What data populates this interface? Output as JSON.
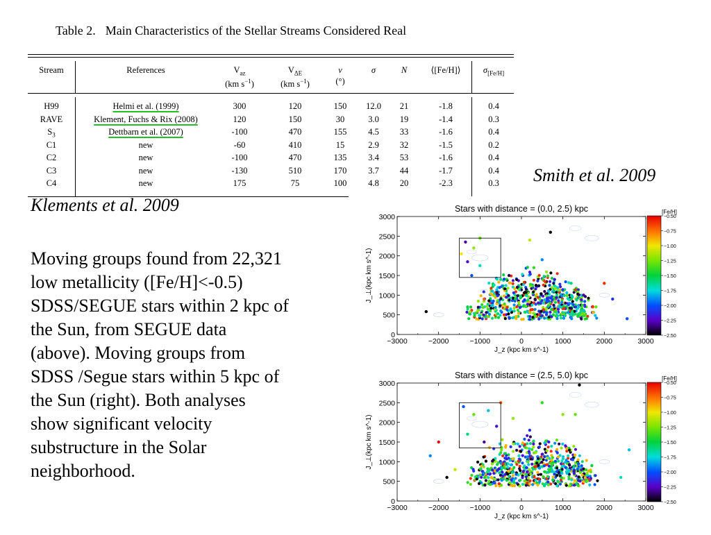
{
  "table": {
    "label": "Table 2.",
    "caption": "Main Characteristics of the Stellar Streams Considered Real",
    "headers": [
      {
        "line1": "Stream",
        "line2": ""
      },
      {
        "line1": "References",
        "line2": ""
      },
      {
        "line1": "V_az",
        "line2": "(km s^−1)"
      },
      {
        "line1": "V_ΔE",
        "line2": "(km s^−1)"
      },
      {
        "line1": "ν",
        "line2": "(°)"
      },
      {
        "line1": "σ",
        "line2": ""
      },
      {
        "line1": "N",
        "line2": ""
      },
      {
        "line1": "⟨[Fe/H]⟩",
        "line2": ""
      },
      {
        "line1": "σ_[Fe/H]",
        "line2": ""
      }
    ],
    "rows": [
      {
        "stream": "H99",
        "ref": "Helmi et al. (1999)",
        "vaz": "300",
        "vde": "120",
        "nu": "150",
        "sigma": "12.0",
        "n": "21",
        "feh": "-1.8",
        "sfeh": "0.4"
      },
      {
        "stream": "RAVE",
        "ref": "Klement, Fuchs & Rix (2008)",
        "vaz": "120",
        "vde": "150",
        "nu": "30",
        "sigma": "3.0",
        "n": "19",
        "feh": "-1.4",
        "sfeh": "0.3"
      },
      {
        "stream": "S3",
        "ref": "Dettbarn et al. (2007)",
        "vaz": "-100",
        "vde": "470",
        "nu": "155",
        "sigma": "4.5",
        "n": "33",
        "feh": "-1.6",
        "sfeh": "0.4"
      },
      {
        "stream": "C1",
        "ref": "new",
        "vaz": "-60",
        "vde": "410",
        "nu": "15",
        "sigma": "2.9",
        "n": "32",
        "feh": "-1.5",
        "sfeh": "0.2"
      },
      {
        "stream": "C2",
        "ref": "new",
        "vaz": "-100",
        "vde": "470",
        "nu": "135",
        "sigma": "3.4",
        "n": "53",
        "feh": "-1.6",
        "sfeh": "0.4"
      },
      {
        "stream": "C3",
        "ref": "new",
        "vaz": "-130",
        "vde": "510",
        "nu": "170",
        "sigma": "3.7",
        "n": "44",
        "feh": "-1.7",
        "sfeh": "0.4"
      },
      {
        "stream": "C4",
        "ref": "new",
        "vaz": "175",
        "vde": "75",
        "nu": "100",
        "sigma": "4.8",
        "n": "20",
        "feh": "-2.3",
        "sfeh": "0.3"
      }
    ]
  },
  "credit_smith": "Smith et al. 2009",
  "credit_klements": "Klements et al. 2009",
  "body_lines": [
    "Moving groups found from 22,321",
    "low metallicity ([Fe/H]<-0.5)",
    "SDSS/SEGUE stars within 2 kpc of",
    "the Sun, from SEGUE data",
    "(above).  Moving groups from",
    "SDSS /Segue stars within 5 kpc of",
    "the Sun (right).  Both analyses",
    "show significant velocity",
    "substructure in the Solar",
    "neighborhood."
  ],
  "chart_data": [
    {
      "type": "scatter",
      "title": "Stars with distance = (0.0, 2.5) kpc",
      "xlabel": "J_z (kpc km s^-1)",
      "ylabel": "J_⊥(kpc km s^-1)",
      "xlim": [
        -3000,
        3000
      ],
      "ylim": [
        0,
        3000
      ],
      "xticks": [
        "−3000",
        "−2000",
        "−1000",
        "0",
        "1000",
        "2000",
        "3000"
      ],
      "yticks": [
        "0",
        "500",
        "1000",
        "1500",
        "2000",
        "2500",
        "3000"
      ],
      "colorbar": {
        "label": "[Fe/H]",
        "ticks": [
          "−0.50",
          "−0.75",
          "−1.00",
          "−1.25",
          "−1.50",
          "−1.75",
          "−2.00",
          "−2.25",
          "−2.50"
        ],
        "range": [
          -2.5,
          -0.5
        ]
      },
      "box": {
        "x": [
          -1500,
          -500
        ],
        "y": [
          1450,
          2450
        ]
      },
      "points": [
        [
          -2300,
          580,
          -2.5
        ],
        [
          -1350,
          2350,
          -2.3
        ],
        [
          -1150,
          2200,
          -1.2
        ],
        [
          -1300,
          1850,
          -2.2
        ],
        [
          -1000,
          1750,
          -1.7
        ],
        [
          -1200,
          1500,
          -2.0
        ],
        [
          -500,
          1400,
          -1.6
        ],
        [
          -300,
          1500,
          -2.4
        ],
        [
          700,
          2600,
          -2.6
        ],
        [
          200,
          2400,
          -1.1
        ],
        [
          500,
          1900,
          -1.9
        ],
        [
          -700,
          1100,
          -1.8
        ],
        [
          -900,
          900,
          -0.7
        ],
        [
          -1300,
          700,
          -1.5
        ],
        [
          1200,
          1300,
          -1.6
        ],
        [
          1500,
          1000,
          -2.3
        ],
        [
          2000,
          1300,
          -0.6
        ],
        [
          2200,
          900,
          -2.1
        ],
        [
          2550,
          400,
          -2.0
        ],
        [
          -100,
          1200,
          -2.4
        ],
        [
          300,
          1700,
          -1.4
        ],
        [
          800,
          1400,
          -2.2
        ],
        [
          1800,
          700,
          -1.3
        ],
        [
          -1450,
          2050,
          -1.0
        ],
        [
          -1000,
          2450,
          -1.3
        ]
      ]
    },
    {
      "type": "scatter",
      "title": "Stars with distance = (2.5, 5.0) kpc",
      "xlabel": "J_z (kpc km s^-1)",
      "ylabel": "J_⊥(kpc km s^-1)",
      "xlim": [
        -3000,
        3000
      ],
      "ylim": [
        0,
        3000
      ],
      "xticks": [
        "−3000",
        "−2000",
        "−1000",
        "0",
        "1000",
        "2000",
        "3000"
      ],
      "yticks": [
        "0",
        "500",
        "1000",
        "1500",
        "2000",
        "2500",
        "3000"
      ],
      "colorbar": {
        "label": "[Fe/H]",
        "ticks": [
          "−0.50",
          "−0.75",
          "−1.00",
          "−1.25",
          "−1.50",
          "−1.75",
          "−2.00",
          "−2.25",
          "−2.50"
        ],
        "range": [
          -2.5,
          -0.5
        ]
      },
      "box": {
        "x": [
          -1500,
          -500
        ],
        "y": [
          1350,
          2500
        ]
      },
      "points": [
        [
          1400,
          2950,
          -2.6
        ],
        [
          -1400,
          2400,
          -2.0
        ],
        [
          -1150,
          2200,
          -1.3
        ],
        [
          -800,
          2300,
          -1.8
        ],
        [
          -600,
          1900,
          -2.2
        ],
        [
          -1300,
          1700,
          -1.6
        ],
        [
          -900,
          1500,
          -2.3
        ],
        [
          -2000,
          1500,
          -0.5
        ],
        [
          -2200,
          1150,
          -1.9
        ],
        [
          -1600,
          800,
          -1.1
        ],
        [
          -1800,
          600,
          -2.5
        ],
        [
          1000,
          2200,
          -1.2
        ],
        [
          500,
          2500,
          -1.4
        ],
        [
          1300,
          2200,
          -1.3
        ],
        [
          2600,
          1300,
          -1.8
        ],
        [
          2400,
          600,
          -1.7
        ],
        [
          -500,
          2500,
          -0.7
        ],
        [
          200,
          1800,
          -2.1
        ],
        [
          1700,
          900,
          -1.5
        ],
        [
          -200,
          2100,
          -1.2
        ]
      ]
    }
  ]
}
